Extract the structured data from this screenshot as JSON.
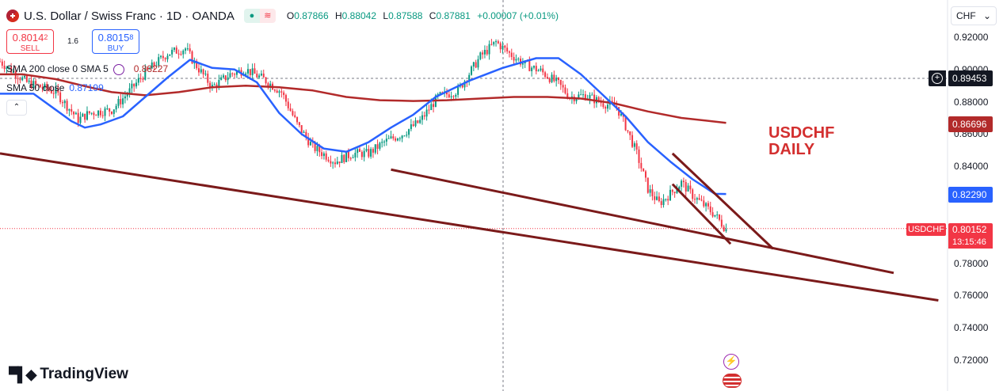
{
  "header": {
    "title": "U.S. Dollar / Swiss Franc · 1D · OANDA",
    "open_label": "O",
    "open": "0.87866",
    "high_label": "H",
    "high": "0.88042",
    "low_label": "L",
    "low": "0.87588",
    "close_label": "C",
    "close": "0.87881",
    "change": "+0.00007 (+0.01%)"
  },
  "trade": {
    "sell_price": "0.8014",
    "sell_price_sup": "2",
    "sell_label": "SELL",
    "spread": "1.6",
    "buy_price": "0.8015",
    "buy_price_sup": "8",
    "buy_label": "BUY"
  },
  "indicators": {
    "sma200_label": "SMA 200 close 0 SMA 5",
    "sma200_value": "0.88227",
    "sma50_label": "SMA 50 close",
    "sma50_value": "0.87199"
  },
  "currency": "CHF",
  "price_scale": {
    "ticks": [
      "0.92000",
      "0.90000",
      "0.88000",
      "0.86000",
      "0.84000",
      "0.82000",
      "0.80000",
      "0.78000",
      "0.76000",
      "0.74000",
      "0.72000"
    ],
    "crosshair_price": "0.89453",
    "sma200_tag": "0.86696",
    "sma50_tag": "0.82290",
    "last_price": "0.80152",
    "symbol_tag": "USDCHF",
    "countdown": "13:15:46"
  },
  "annotation": {
    "line1": "USDCHF",
    "line2": "DAILY"
  },
  "brand": "TradingView",
  "colors": {
    "up": "#089981",
    "down": "#f23645",
    "sma50": "#2962ff",
    "sma200": "#b22a2a",
    "trendline": "#7b1a1a",
    "annotation": "#d32f2f"
  },
  "chart_data": {
    "type": "candlestick",
    "symbol": "USDCHF",
    "timeframe": "1D",
    "ylim": [
      0.715,
      0.925
    ],
    "close_path": [
      [
        0,
        0.905
      ],
      [
        12,
        0.892
      ],
      [
        25,
        0.886
      ],
      [
        35,
        0.869
      ],
      [
        40,
        0.873
      ],
      [
        50,
        0.875
      ],
      [
        57,
        0.885
      ],
      [
        65,
        0.898
      ],
      [
        75,
        0.91
      ],
      [
        83,
        0.913
      ],
      [
        87,
        0.904
      ],
      [
        95,
        0.889
      ],
      [
        103,
        0.897
      ],
      [
        110,
        0.9
      ],
      [
        118,
        0.894
      ],
      [
        126,
        0.886
      ],
      [
        133,
        0.866
      ],
      [
        140,
        0.852
      ],
      [
        150,
        0.843
      ],
      [
        158,
        0.848
      ],
      [
        165,
        0.848
      ],
      [
        172,
        0.855
      ],
      [
        180,
        0.86
      ],
      [
        188,
        0.868
      ],
      [
        196,
        0.883
      ],
      [
        205,
        0.887
      ],
      [
        215,
        0.908
      ],
      [
        222,
        0.917
      ],
      [
        228,
        0.91
      ],
      [
        235,
        0.903
      ],
      [
        242,
        0.899
      ],
      [
        250,
        0.891
      ],
      [
        255,
        0.883
      ],
      [
        262,
        0.884
      ],
      [
        270,
        0.879
      ],
      [
        276,
        0.877
      ],
      [
        280,
        0.865
      ],
      [
        285,
        0.848
      ],
      [
        290,
        0.826
      ],
      [
        295,
        0.817
      ],
      [
        300,
        0.823
      ],
      [
        305,
        0.83
      ],
      [
        310,
        0.822
      ],
      [
        315,
        0.816
      ],
      [
        320,
        0.81
      ],
      [
        325,
        0.801
      ]
    ],
    "sma50": [
      [
        0,
        0.885
      ],
      [
        15,
        0.885
      ],
      [
        25,
        0.875
      ],
      [
        32,
        0.868
      ],
      [
        38,
        0.864
      ],
      [
        45,
        0.866
      ],
      [
        55,
        0.871
      ],
      [
        65,
        0.883
      ],
      [
        75,
        0.895
      ],
      [
        85,
        0.906
      ],
      [
        95,
        0.901
      ],
      [
        105,
        0.9
      ],
      [
        115,
        0.892
      ],
      [
        125,
        0.873
      ],
      [
        135,
        0.86
      ],
      [
        145,
        0.851
      ],
      [
        155,
        0.849
      ],
      [
        165,
        0.855
      ],
      [
        175,
        0.864
      ],
      [
        185,
        0.872
      ],
      [
        195,
        0.883
      ],
      [
        210,
        0.893
      ],
      [
        225,
        0.901
      ],
      [
        240,
        0.907
      ],
      [
        250,
        0.907
      ],
      [
        260,
        0.897
      ],
      [
        270,
        0.884
      ],
      [
        280,
        0.871
      ],
      [
        290,
        0.855
      ],
      [
        300,
        0.843
      ],
      [
        310,
        0.832
      ],
      [
        320,
        0.823
      ],
      [
        325,
        0.8229
      ]
    ],
    "sma200": [
      [
        0,
        0.897
      ],
      [
        10,
        0.897
      ],
      [
        25,
        0.894
      ],
      [
        40,
        0.889
      ],
      [
        50,
        0.886
      ],
      [
        65,
        0.884
      ],
      [
        80,
        0.886
      ],
      [
        95,
        0.889
      ],
      [
        110,
        0.89
      ],
      [
        125,
        0.889
      ],
      [
        140,
        0.887
      ],
      [
        155,
        0.883
      ],
      [
        170,
        0.881
      ],
      [
        185,
        0.8805
      ],
      [
        200,
        0.881
      ],
      [
        215,
        0.882
      ],
      [
        230,
        0.883
      ],
      [
        245,
        0.883
      ],
      [
        260,
        0.882
      ],
      [
        275,
        0.879
      ],
      [
        290,
        0.874
      ],
      [
        305,
        0.87
      ],
      [
        325,
        0.86696
      ]
    ],
    "trendlines": [
      {
        "name": "long-term-lower",
        "from": [
          0,
          0.848
        ],
        "to": [
          420,
          0.757
        ]
      },
      {
        "name": "medium-lower",
        "from": [
          175,
          0.838
        ],
        "to": [
          400,
          0.774
        ]
      },
      {
        "name": "wedge-top",
        "from": [
          301,
          0.848
        ],
        "to": [
          346,
          0.789
        ]
      },
      {
        "name": "wedge-bottom",
        "from": [
          301,
          0.829
        ],
        "to": [
          327,
          0.792
        ]
      }
    ],
    "last_price": 0.80152
  }
}
